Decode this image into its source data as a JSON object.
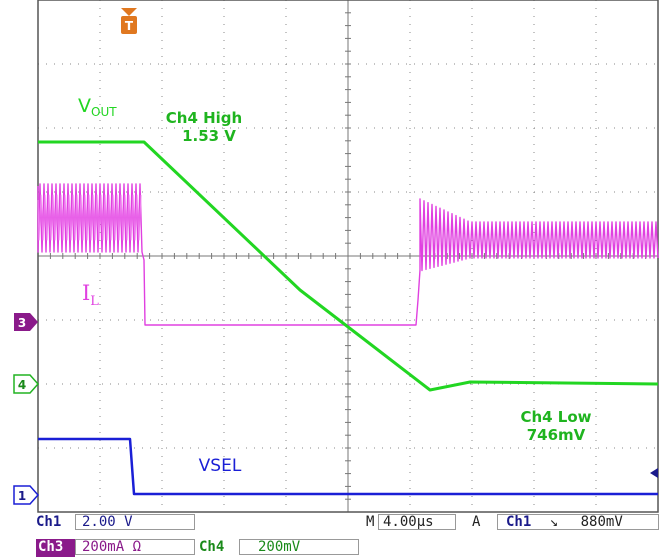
{
  "colors": {
    "ch1": "#1a1fd6",
    "ch3": "#e040e0",
    "ch4": "#22d622",
    "grid": "#444444",
    "ch3_badge": "#8a1a8a",
    "status_green": "#1a8a1a",
    "status_blue": "#1a1a8a",
    "trigger": "#e07820"
  },
  "markers": {
    "ch3": "3",
    "ch4": "4",
    "ch1": "1",
    "trigger": "T"
  },
  "annotations": {
    "vout_main": "V",
    "vout_sub": "OUT",
    "il_main": "I",
    "il_sub": "L",
    "ch4_high_title": "Ch4 High",
    "ch4_high_value": "1.53 V",
    "ch4_low_title": "Ch4 Low",
    "ch4_low_value": "746mV",
    "vsel": "VSEL"
  },
  "status": {
    "ch1_label": "Ch1",
    "ch1_scale": "2.00 V",
    "timebase_label": "M",
    "timebase_value": "4.00µs",
    "trigger_mode": "A",
    "trigger_source": "Ch1",
    "trigger_slope": "↘",
    "trigger_level": "880mV",
    "ch3_label": "Ch3",
    "ch3_scale": "200mA Ω",
    "ch4_label": "Ch4",
    "ch4_scale": "200mV"
  }
}
